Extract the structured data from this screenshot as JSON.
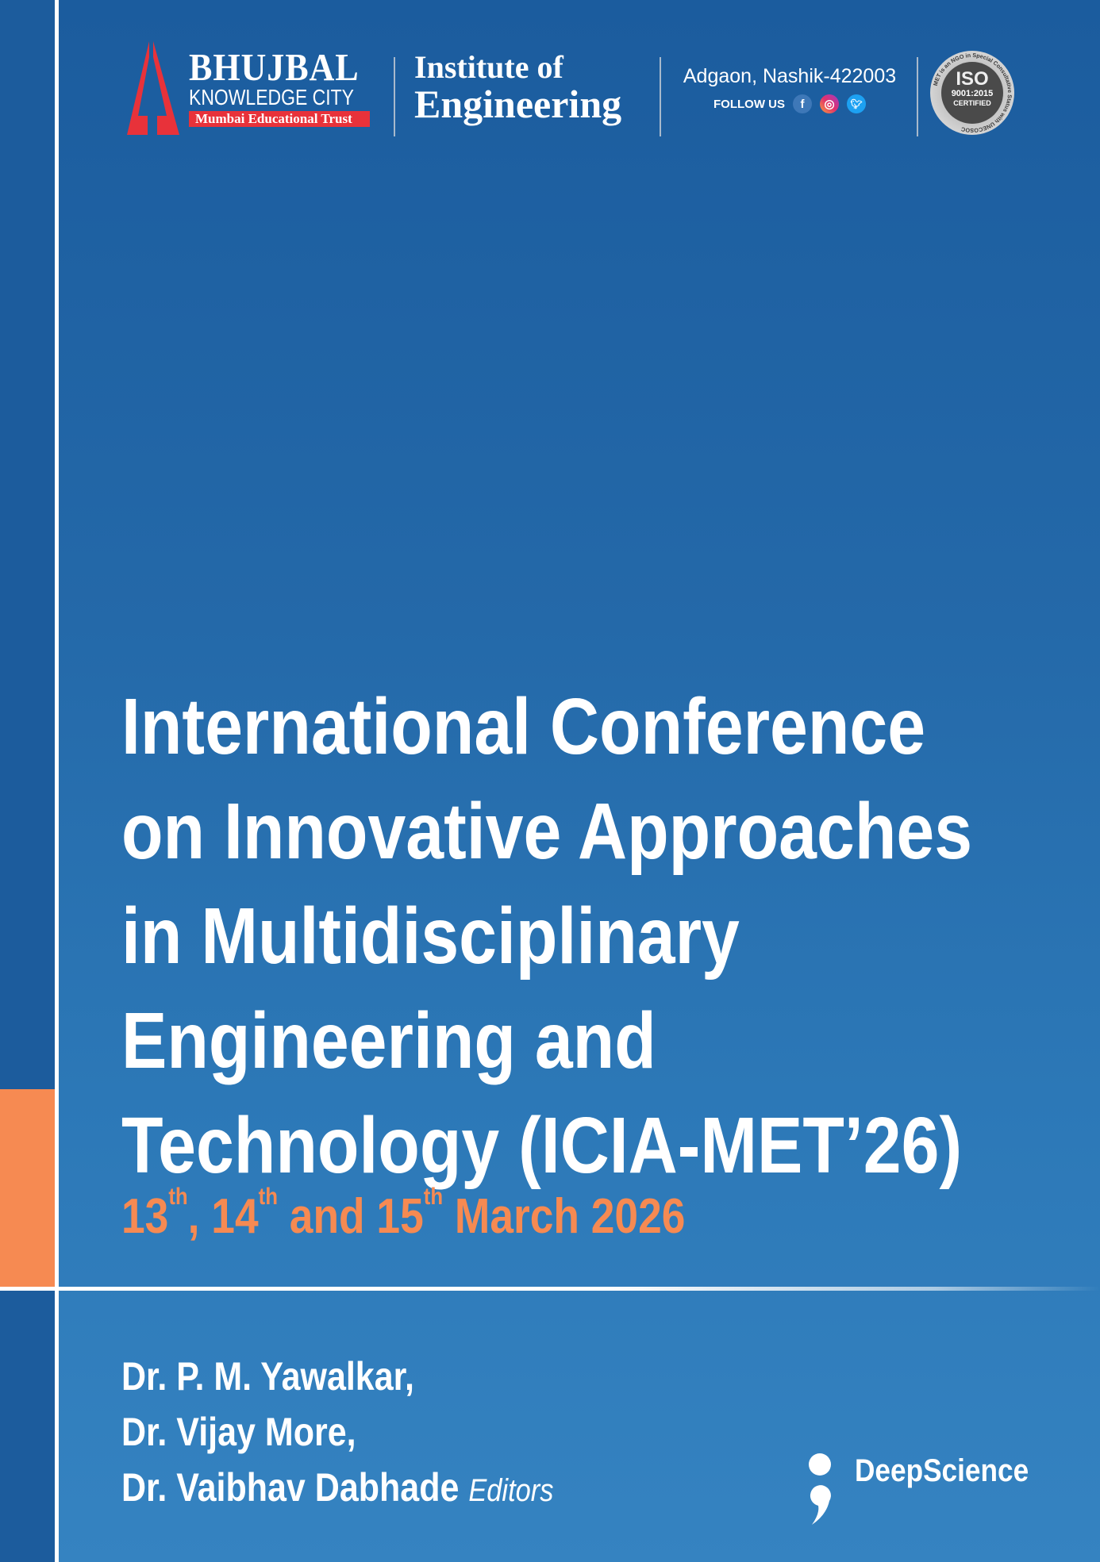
{
  "header": {
    "brand_name": "BHUJBAL",
    "brand_sub": "KNOWLEDGE CITY",
    "brand_trust": "Mumbai Educational Trust",
    "institute_line1": "Institute of",
    "institute_line2": "Engineering",
    "address": "Adgaon, Nashik-422003",
    "follow_label": "FOLLOW US",
    "social": [
      "facebook-icon",
      "instagram-icon",
      "twitter-icon"
    ],
    "iso": {
      "mark": "ISO",
      "standard": "9001:2015",
      "status": "CERTIFIED",
      "ring_text": "MET is an NGO in Special Consultative Status with UNECOSOC"
    }
  },
  "title_lines": [
    "International Conference",
    "on Innovative Approaches",
    "in Multidisciplinary",
    "Engineering and",
    "Technology (ICIA-MET’26)"
  ],
  "dates": {
    "d1": "13",
    "s1": "th",
    "sep1": ", ",
    "d2": "14",
    "s2": "th",
    "sep2": " and ",
    "d3": "15",
    "s3": "th",
    "rest": " March 2026"
  },
  "editors": [
    "Dr. P. M. Yawalkar,",
    "Dr. Vijay More,",
    "Dr. Vaibhav Dabhade"
  ],
  "editors_label": "Editors",
  "publisher": "DeepScience",
  "colors": {
    "background_top": "#1b5c9e",
    "background_bottom": "#3583c1",
    "accent_orange": "#f68a52",
    "logo_red": "#e8323a"
  }
}
